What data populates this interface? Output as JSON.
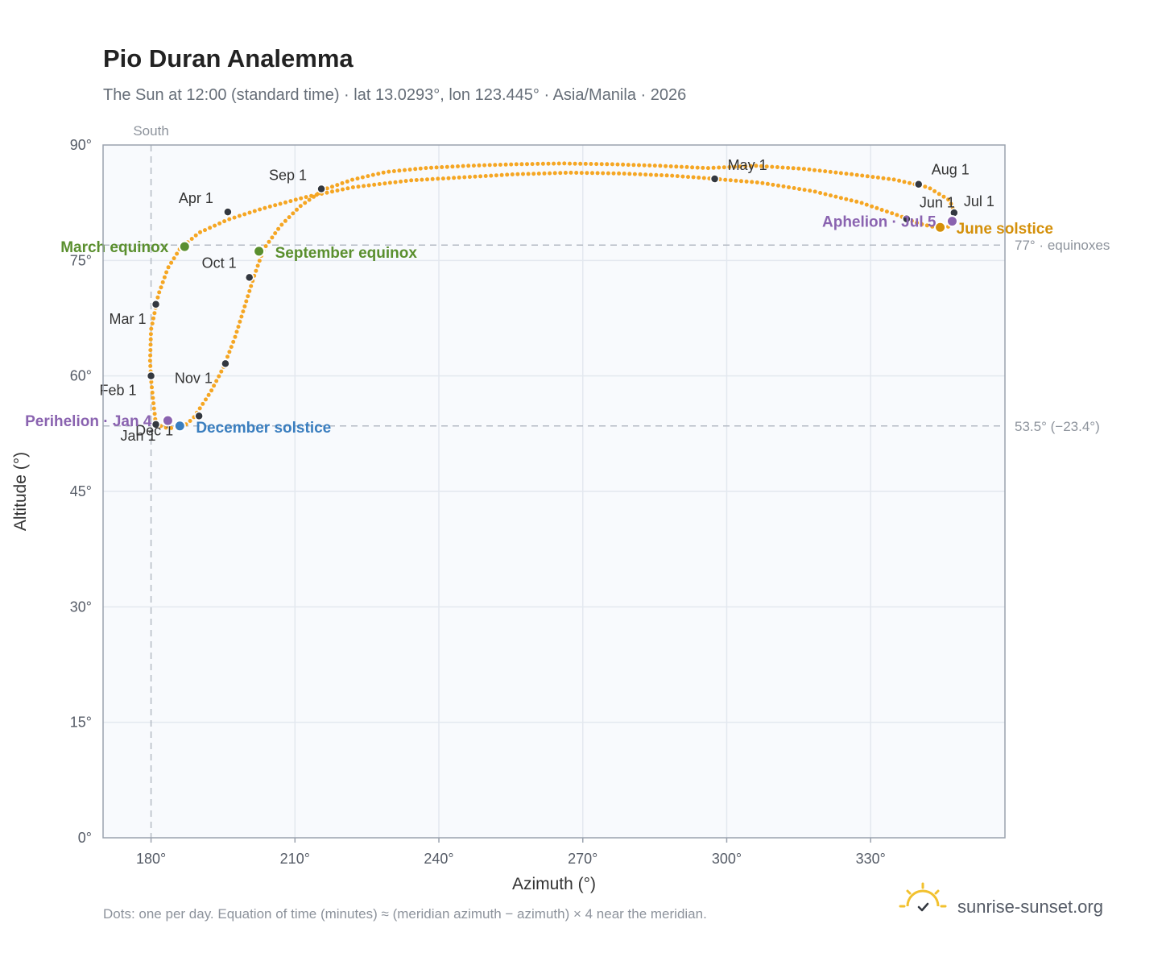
{
  "title": "Pio Duran Analemma",
  "subtitle": "The Sun at 12:00 (standard time) · lat 13.0293°, lon 123.445° · Asia/Manila · 2026",
  "footnote": "Dots: one per day. Equation of time (minutes) ≈ (meridian azimuth − azimuth) × 4 near the meridian.",
  "brand": "sunrise-sunset.org",
  "colors": {
    "path": "#f5a623",
    "month_dot": "#333840",
    "equinox": "#5a8f2e",
    "december": "#3a7ebf",
    "june": "#d4900a",
    "apsis": "#8a63b0",
    "grid": "#e3e8ef",
    "plot_bg": "#f8fafd",
    "frame": "#9aa2ae",
    "reference": "#b4bbc4"
  },
  "chart_data": {
    "type": "scatter",
    "title": "Pio Duran Analemma",
    "subtitle": "The Sun at 12:00 (standard time) · lat 13.0293°, lon 123.445° · Asia/Manila · 2026",
    "xlabel": "Azimuth (°)",
    "ylabel": "Altitude (°)",
    "xlim": [
      170,
      358
    ],
    "ylim": [
      0,
      90
    ],
    "x_ticks": [
      180,
      210,
      240,
      270,
      300,
      330
    ],
    "x_tick_labels": [
      "180°",
      "210°",
      "240°",
      "270°",
      "300°",
      "330°"
    ],
    "y_ticks": [
      0,
      15,
      30,
      45,
      60,
      75,
      90
    ],
    "y_tick_labels": [
      "0°",
      "15°",
      "30°",
      "45°",
      "60°",
      "75°",
      "90°"
    ],
    "grid": true,
    "south_line": {
      "x": 180,
      "label": "South"
    },
    "reference_lines": [
      {
        "y": 77,
        "label": "77° · equinoxes"
      },
      {
        "y": 53.5,
        "label": "53.5° (−23.4°)"
      }
    ],
    "daily_path": [
      [
        181.0,
        53.7
      ],
      [
        183.5,
        53.2
      ],
      [
        186.5,
        53.3
      ],
      [
        188.8,
        54.5
      ],
      [
        190.3,
        55.9
      ],
      [
        192.5,
        58.0
      ],
      [
        195.0,
        61.0
      ],
      [
        197.5,
        65.0
      ],
      [
        199.5,
        69.0
      ],
      [
        201.5,
        73.0
      ],
      [
        203.5,
        76.5
      ],
      [
        207.0,
        79.5
      ],
      [
        211.0,
        82.0
      ],
      [
        216.0,
        84.2
      ],
      [
        222.0,
        85.5
      ],
      [
        229.0,
        86.5
      ],
      [
        237.0,
        87.0
      ],
      [
        246.0,
        87.3
      ],
      [
        256.0,
        87.5
      ],
      [
        266.0,
        87.6
      ],
      [
        276.0,
        87.5
      ],
      [
        286.0,
        87.3
      ],
      [
        296.0,
        87.0
      ],
      [
        306.0,
        87.3
      ],
      [
        316.0,
        86.9
      ],
      [
        326.0,
        86.2
      ],
      [
        335.0,
        85.5
      ],
      [
        342.0,
        84.5
      ],
      [
        346.5,
        82.8
      ],
      [
        347.7,
        80.8
      ],
      [
        346.5,
        79.4
      ],
      [
        343.5,
        79.3
      ],
      [
        340.0,
        79.8
      ],
      [
        336.0,
        80.8
      ],
      [
        328.0,
        82.5
      ],
      [
        318.0,
        84.0
      ],
      [
        307.0,
        85.1
      ],
      [
        297.5,
        85.6
      ],
      [
        289.0,
        86.0
      ],
      [
        278.0,
        86.3
      ],
      [
        267.0,
        86.4
      ],
      [
        256.0,
        86.2
      ],
      [
        245.0,
        85.8
      ],
      [
        234.0,
        85.4
      ],
      [
        222.0,
        84.5
      ],
      [
        212.0,
        83.2
      ],
      [
        203.0,
        81.7
      ],
      [
        196.0,
        80.3
      ],
      [
        190.0,
        78.6
      ],
      [
        186.0,
        76.5
      ],
      [
        183.5,
        74.0
      ],
      [
        181.5,
        70.5
      ],
      [
        180.0,
        66.0
      ],
      [
        179.8,
        62.0
      ],
      [
        180.0,
        59.5
      ],
      [
        180.5,
        56.5
      ],
      [
        181.0,
        53.7
      ]
    ],
    "month_markers": [
      {
        "label": "Jan 1",
        "az": 181.0,
        "alt": 53.7
      },
      {
        "label": "Feb 1",
        "az": 180.0,
        "alt": 60.0
      },
      {
        "label": "Mar 1",
        "az": 181.0,
        "alt": 69.3
      },
      {
        "label": "Apr 1",
        "az": 196.0,
        "alt": 81.3
      },
      {
        "label": "May 1",
        "az": 297.5,
        "alt": 85.6
      },
      {
        "label": "Jun 1",
        "az": 337.5,
        "alt": 80.4
      },
      {
        "label": "Jul 1",
        "az": 347.4,
        "alt": 81.2
      },
      {
        "label": "Aug 1",
        "az": 340.0,
        "alt": 84.9
      },
      {
        "label": "Sep 1",
        "az": 215.5,
        "alt": 84.3
      },
      {
        "label": "Oct 1",
        "az": 200.5,
        "alt": 72.8
      },
      {
        "label": "Nov 1",
        "az": 195.5,
        "alt": 61.6
      },
      {
        "label": "Dec 1",
        "az": 190.0,
        "alt": 54.8
      }
    ],
    "events": [
      {
        "label": "March equinox",
        "kind": "equinox",
        "az": 187.0,
        "alt": 76.8
      },
      {
        "label": "September equinox",
        "kind": "equinox",
        "az": 202.5,
        "alt": 76.2
      },
      {
        "label": "December solstice",
        "kind": "december",
        "az": 186.0,
        "alt": 53.5
      },
      {
        "label": "June solstice",
        "kind": "june",
        "az": 344.5,
        "alt": 79.3
      },
      {
        "label": "Perihelion · Jan 4",
        "kind": "apsis",
        "az": 183.5,
        "alt": 54.2
      },
      {
        "label": "Aphelion · Jul 5",
        "kind": "apsis",
        "az": 347.0,
        "alt": 80.1
      }
    ]
  }
}
